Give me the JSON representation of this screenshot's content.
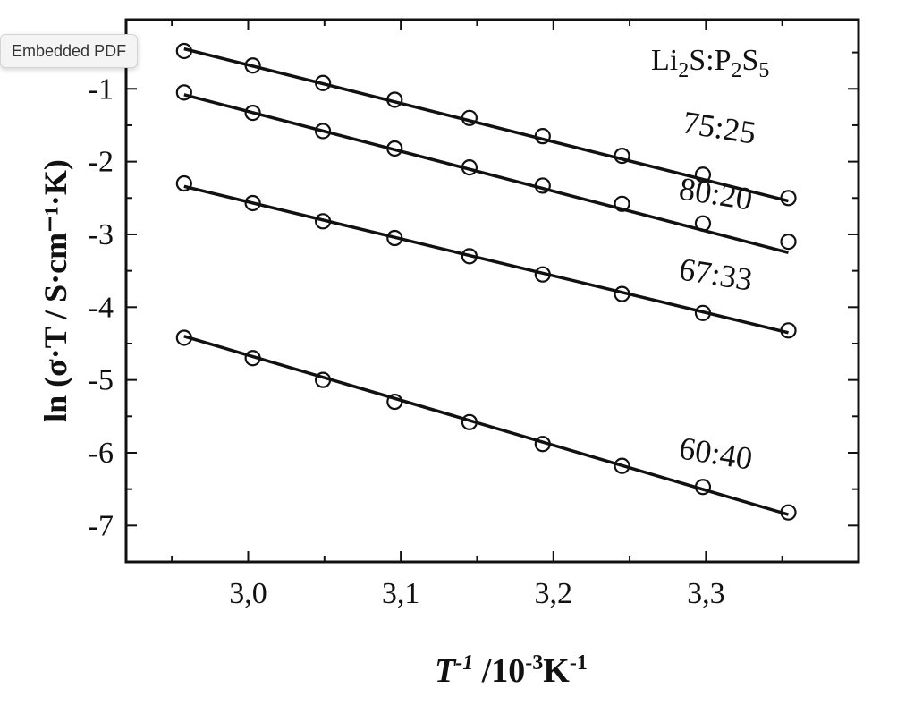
{
  "tooltip": {
    "text": "Embedded PDF"
  },
  "chart_data": {
    "type": "scatter",
    "title": "",
    "xlabel": {
      "symbol": "T",
      "superscript": "-1",
      "units": " /10",
      "units_exp": "-3",
      "units_tail": "K",
      "units_tail_exp": "-1"
    },
    "ylabel": "ln (σ·T / S·cm⁻¹·K)",
    "xlim": [
      2.92,
      3.4
    ],
    "ylim": [
      -7.5,
      -0.05
    ],
    "xticks": [
      3.0,
      3.1,
      3.2,
      3.3
    ],
    "xtick_labels": [
      "3,0",
      "3,1",
      "3,2",
      "3,3"
    ],
    "yticks": [
      -7,
      -6,
      -5,
      -4,
      -3,
      -2,
      -1
    ],
    "ytick_labels": [
      "-7",
      "-6",
      "-5",
      "-4",
      "-3",
      "-2",
      "-1"
    ],
    "grid": false,
    "legend_title": {
      "a": "Li",
      "a_sub": "2",
      "b": "S:P",
      "b_sub": "2",
      "c": "S",
      "c_sub": "5"
    },
    "x": [
      2.958,
      3.003,
      3.049,
      3.096,
      3.145,
      3.193,
      3.245,
      3.298,
      3.354
    ],
    "series": [
      {
        "name": "75:25",
        "values": [
          -0.48,
          -0.68,
          -0.92,
          -1.15,
          -1.4,
          -1.65,
          -1.92,
          -2.18,
          -2.5
        ],
        "fit": [
          -0.45,
          -2.54
        ]
      },
      {
        "name": "80:20",
        "values": [
          -1.05,
          -1.33,
          -1.58,
          -1.82,
          -2.08,
          -2.33,
          -2.58,
          -2.85,
          -3.1
        ],
        "fit": [
          -1.08,
          -3.25
        ]
      },
      {
        "name": "67:33",
        "values": [
          -2.3,
          -2.57,
          -2.82,
          -3.05,
          -3.3,
          -3.55,
          -3.82,
          -4.08,
          -4.32
        ],
        "fit": [
          -2.34,
          -4.35
        ]
      },
      {
        "name": "60:40",
        "values": [
          -4.42,
          -4.7,
          -5.0,
          -5.3,
          -5.58,
          -5.88,
          -6.18,
          -6.47,
          -6.82
        ],
        "fit": [
          -4.4,
          -6.85
        ]
      }
    ]
  }
}
